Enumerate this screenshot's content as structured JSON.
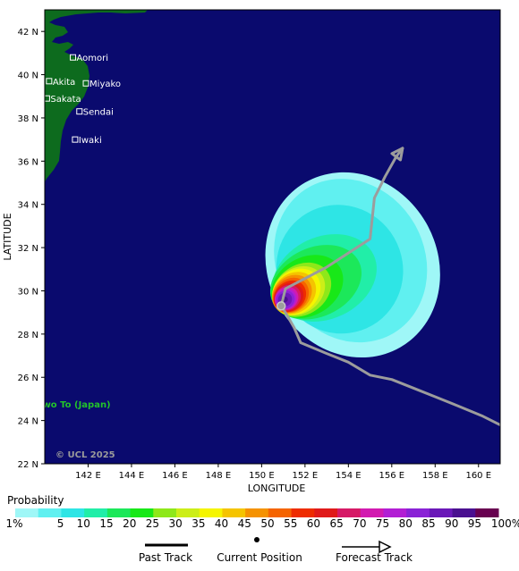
{
  "map": {
    "x_axis": {
      "label": "LONGITUDE",
      "range": [
        140,
        161
      ],
      "ticks": [
        {
          "value": 142,
          "label": "142 E"
        },
        {
          "value": 144,
          "label": "144 E"
        },
        {
          "value": 146,
          "label": "146 E"
        },
        {
          "value": 148,
          "label": "148 E"
        },
        {
          "value": 150,
          "label": "150 E"
        },
        {
          "value": 152,
          "label": "152 E"
        },
        {
          "value": 154,
          "label": "154 E"
        },
        {
          "value": 156,
          "label": "156 E"
        },
        {
          "value": 158,
          "label": "158 E"
        },
        {
          "value": 160,
          "label": "160 E"
        }
      ]
    },
    "y_axis": {
      "label": "LATITUDE",
      "range": [
        22,
        43
      ],
      "ticks": [
        {
          "value": 22,
          "label": "22 N"
        },
        {
          "value": 24,
          "label": "24 N"
        },
        {
          "value": 26,
          "label": "26 N"
        },
        {
          "value": 28,
          "label": "28 N"
        },
        {
          "value": 30,
          "label": "30 N"
        },
        {
          "value": 32,
          "label": "32 N"
        },
        {
          "value": 34,
          "label": "34 N"
        },
        {
          "value": 36,
          "label": "36 N"
        },
        {
          "value": 38,
          "label": "38 N"
        },
        {
          "value": 40,
          "label": "40 N"
        },
        {
          "value": 42,
          "label": "42 N"
        }
      ]
    },
    "cities": [
      {
        "name": "Aomori",
        "lon": 141.3,
        "lat": 40.8
      },
      {
        "name": "Akita",
        "lon": 140.2,
        "lat": 39.7
      },
      {
        "name": "Miyako",
        "lon": 141.9,
        "lat": 39.6
      },
      {
        "name": "Sakata",
        "lon": 140.1,
        "lat": 38.9
      },
      {
        "name": "Sendai",
        "lon": 141.6,
        "lat": 38.3
      },
      {
        "name": "Iwaki",
        "lon": 141.4,
        "lat": 37.0
      }
    ],
    "island_label": {
      "text": "wo To (Japan)",
      "lon": 139.9,
      "lat": 24.6
    },
    "copyright": "© UCL 2025",
    "colors": {
      "ocean": "#0a0a6e",
      "land": "#0d6b1e",
      "track": "#9c9c9c",
      "island_label": "#22c42a"
    },
    "past_track": [
      [
        161.0,
        23.8
      ],
      [
        160.2,
        24.2
      ],
      [
        159.0,
        24.7
      ],
      [
        158.0,
        25.1
      ],
      [
        157.0,
        25.5
      ],
      [
        156.0,
        25.9
      ],
      [
        155.0,
        26.1
      ],
      [
        154.0,
        26.7
      ],
      [
        153.0,
        27.1
      ],
      [
        151.8,
        27.6
      ],
      [
        151.5,
        28.3
      ],
      [
        151.1,
        29.0
      ],
      [
        150.9,
        29.3
      ]
    ],
    "current_position": {
      "lon": 150.9,
      "lat": 29.3
    },
    "forecast_track": [
      [
        150.9,
        29.3
      ],
      [
        151.1,
        30.1
      ],
      [
        153.0,
        31.1
      ],
      [
        155.0,
        32.4
      ],
      [
        155.2,
        34.3
      ],
      [
        155.7,
        35.3
      ],
      [
        156.2,
        36.2
      ],
      [
        156.5,
        36.6
      ]
    ],
    "probability_regions": [
      {
        "level": 1,
        "cx": 154.2,
        "cy": 31.2,
        "rx": 3.9,
        "ry": 4.4,
        "rot": -30
      },
      {
        "level": 5,
        "cx": 154.1,
        "cy": 31.4,
        "rx": 3.4,
        "ry": 3.9,
        "rot": -30
      },
      {
        "level": 10,
        "cx": 153.6,
        "cy": 31.0,
        "rx": 2.9,
        "ry": 3.0,
        "rot": -30
      },
      {
        "level": 15,
        "cx": 152.9,
        "cy": 30.6,
        "rx": 2.5,
        "ry": 1.9,
        "rot": -25
      },
      {
        "level": 20,
        "cx": 152.5,
        "cy": 30.4,
        "rx": 2.2,
        "ry": 1.6,
        "rot": -25
      },
      {
        "level": 25,
        "cx": 152.1,
        "cy": 30.2,
        "rx": 1.75,
        "ry": 1.35,
        "rot": -30
      },
      {
        "level": 30,
        "cx": 151.85,
        "cy": 30.05,
        "rx": 1.45,
        "ry": 1.15,
        "rot": -35
      },
      {
        "level": 35,
        "cx": 151.7,
        "cy": 30.0,
        "rx": 1.3,
        "ry": 1.05,
        "rot": -35
      },
      {
        "level": 40,
        "cx": 151.6,
        "cy": 29.95,
        "rx": 1.2,
        "ry": 0.98,
        "rot": -40
      },
      {
        "level": 45,
        "cx": 151.5,
        "cy": 29.9,
        "rx": 1.08,
        "ry": 0.9,
        "rot": -40
      },
      {
        "level": 50,
        "cx": 151.4,
        "cy": 29.85,
        "rx": 0.98,
        "ry": 0.82,
        "rot": -40
      },
      {
        "level": 55,
        "cx": 151.35,
        "cy": 29.8,
        "rx": 0.88,
        "ry": 0.75,
        "rot": -40
      },
      {
        "level": 60,
        "cx": 151.3,
        "cy": 29.75,
        "rx": 0.8,
        "ry": 0.68,
        "rot": -40
      },
      {
        "level": 65,
        "cx": 151.25,
        "cy": 29.7,
        "rx": 0.72,
        "ry": 0.62,
        "rot": -40
      },
      {
        "level": 70,
        "cx": 151.2,
        "cy": 29.68,
        "rx": 0.64,
        "ry": 0.56,
        "rot": -40
      },
      {
        "level": 75,
        "cx": 151.15,
        "cy": 29.65,
        "rx": 0.57,
        "ry": 0.51,
        "rot": -40
      },
      {
        "level": 80,
        "cx": 151.12,
        "cy": 29.62,
        "rx": 0.5,
        "ry": 0.46,
        "rot": -40
      },
      {
        "level": 85,
        "cx": 151.1,
        "cy": 29.6,
        "rx": 0.43,
        "ry": 0.41,
        "rot": -40
      },
      {
        "level": 90,
        "cx": 151.08,
        "cy": 29.6,
        "rx": 0.33,
        "ry": 0.31,
        "rot": -40
      },
      {
        "level": 95,
        "cx": 151.05,
        "cy": 29.6,
        "rx": 0.16,
        "ry": 0.14,
        "rot": 0
      }
    ]
  },
  "legend": {
    "title": "Probability",
    "bins": [
      {
        "label": "1%",
        "color": "#9ff7f7"
      },
      {
        "label": "5",
        "color": "#60f0f0"
      },
      {
        "label": "10",
        "color": "#2ee5e5"
      },
      {
        "label": "15",
        "color": "#21eea8"
      },
      {
        "label": "20",
        "color": "#1ce85a"
      },
      {
        "label": "25",
        "color": "#18e818"
      },
      {
        "label": "30",
        "color": "#8ee81a"
      },
      {
        "label": "35",
        "color": "#ccee18"
      },
      {
        "label": "40",
        "color": "#f5f500"
      },
      {
        "label": "45",
        "color": "#f5c400"
      },
      {
        "label": "50",
        "color": "#f59200"
      },
      {
        "label": "55",
        "color": "#f56400"
      },
      {
        "label": "60",
        "color": "#ee2c00"
      },
      {
        "label": "65",
        "color": "#e01a1a"
      },
      {
        "label": "70",
        "color": "#d61a66"
      },
      {
        "label": "75",
        "color": "#d21ab0"
      },
      {
        "label": "80",
        "color": "#b21ed4"
      },
      {
        "label": "85",
        "color": "#8a22d6"
      },
      {
        "label": "90",
        "color": "#6a18b8"
      },
      {
        "label": "95",
        "color": "#4a1090"
      },
      {
        "label": "100%",
        "color": "#680050"
      }
    ],
    "track_keys": {
      "past": "Past Track",
      "current": "Current Position",
      "forecast": "Forecast Track"
    }
  }
}
